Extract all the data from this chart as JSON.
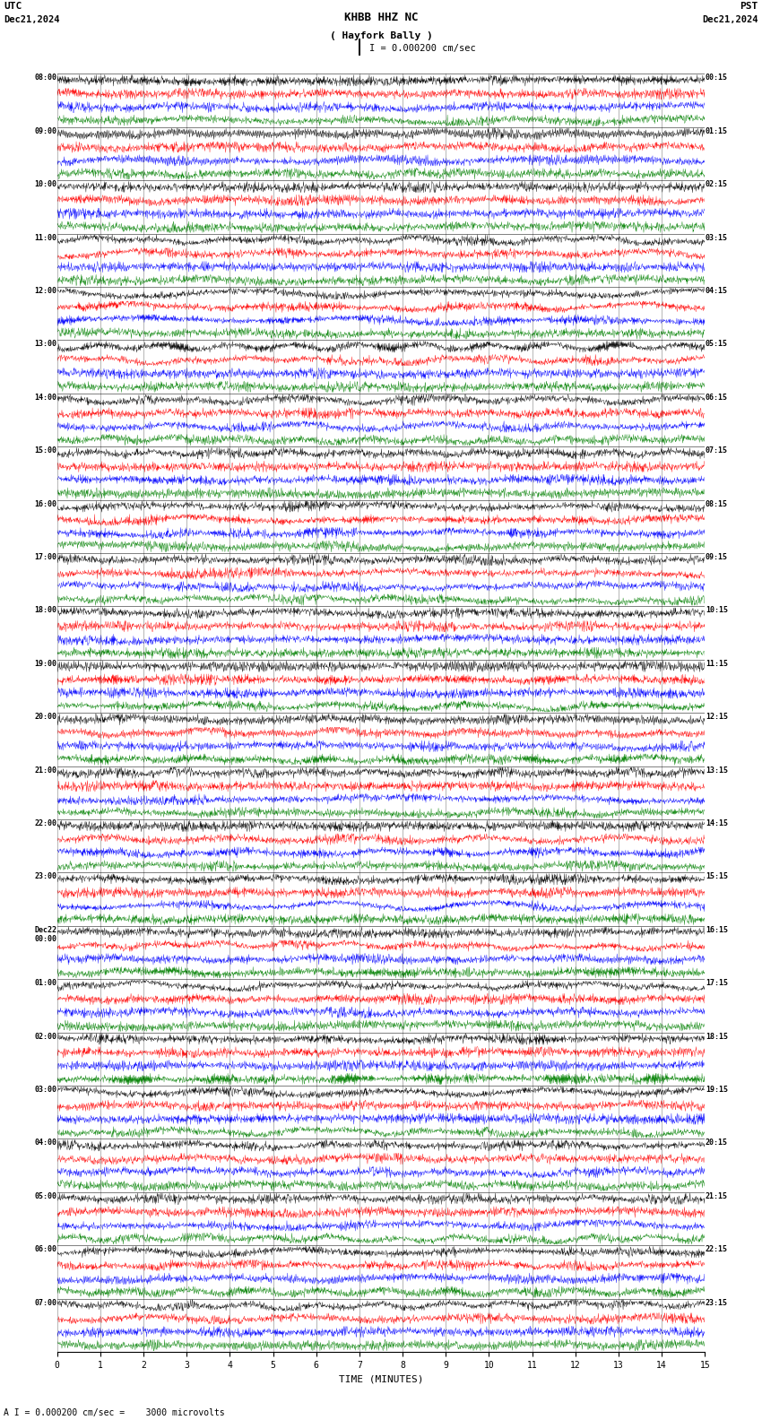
{
  "title_line1": "KHBB HHZ NC",
  "title_line2": "( Hayfork Bally )",
  "scale_text": "I = 0.000200 cm/sec",
  "utc_label": "UTC",
  "pst_label": "PST",
  "date_left": "Dec21,2024",
  "date_right": "Dec21,2024",
  "xlabel": "TIME (MINUTES)",
  "bottom_label": "A I = 0.000200 cm/sec =    3000 microvolts",
  "utc_times": [
    "08:00",
    "09:00",
    "10:00",
    "11:00",
    "12:00",
    "13:00",
    "14:00",
    "15:00",
    "16:00",
    "17:00",
    "18:00",
    "19:00",
    "20:00",
    "21:00",
    "22:00",
    "23:00",
    "Dec22\n00:00",
    "01:00",
    "02:00",
    "03:00",
    "04:00",
    "05:00",
    "06:00",
    "07:00"
  ],
  "pst_times": [
    "00:15",
    "01:15",
    "02:15",
    "03:15",
    "04:15",
    "05:15",
    "06:15",
    "07:15",
    "08:15",
    "09:15",
    "10:15",
    "11:15",
    "12:15",
    "13:15",
    "14:15",
    "15:15",
    "16:15",
    "17:15",
    "18:15",
    "19:15",
    "20:15",
    "21:15",
    "22:15",
    "23:15"
  ],
  "n_hours": 24,
  "traces_per_hour": 4,
  "colors": [
    "black",
    "red",
    "blue",
    "green"
  ],
  "fig_width": 8.5,
  "fig_height": 15.84,
  "bg_color": "white",
  "x_min": 0,
  "x_max": 15,
  "xticks": [
    0,
    1,
    2,
    3,
    4,
    5,
    6,
    7,
    8,
    9,
    10,
    11,
    12,
    13,
    14,
    15
  ]
}
